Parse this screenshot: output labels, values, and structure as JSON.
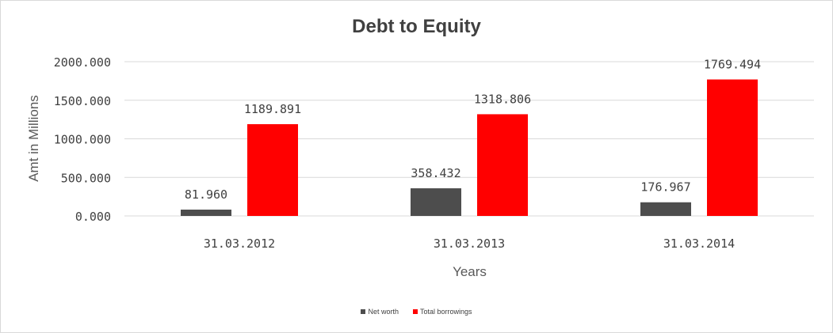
{
  "chart_data": {
    "type": "bar",
    "title": "Debt to Equity",
    "xlabel": "Years",
    "ylabel": "Amt in Millions",
    "categories": [
      "31.03.2012",
      "31.03.2013",
      "31.03.2014"
    ],
    "series": [
      {
        "name": "Net worth",
        "color": "#4d4d4d",
        "values": [
          81.96,
          358.432,
          176.967
        ],
        "labels": [
          "81.960",
          "358.432",
          "176.967"
        ]
      },
      {
        "name": "Total borrowings",
        "color": "#ff0000",
        "values": [
          1189.891,
          1318.806,
          1769.494
        ],
        "labels": [
          "1189.891",
          "1318.806",
          "1769.494"
        ]
      }
    ],
    "ylim": [
      0,
      2000
    ],
    "yticks": [
      0,
      500,
      1000,
      1500,
      2000
    ],
    "ytick_labels": [
      "0.000",
      "500.000",
      "1000.000",
      "1500.000",
      "2000.000"
    ],
    "grid": true,
    "legend": "bottom"
  }
}
